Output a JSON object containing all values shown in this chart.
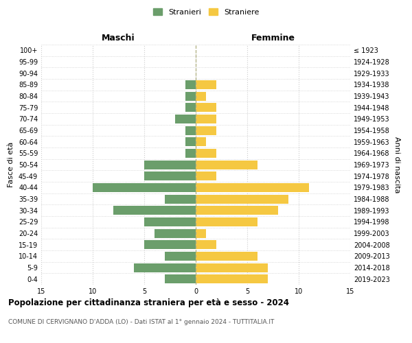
{
  "age_groups": [
    "0-4",
    "5-9",
    "10-14",
    "15-19",
    "20-24",
    "25-29",
    "30-34",
    "35-39",
    "40-44",
    "45-49",
    "50-54",
    "55-59",
    "60-64",
    "65-69",
    "70-74",
    "75-79",
    "80-84",
    "85-89",
    "90-94",
    "95-99",
    "100+"
  ],
  "birth_years": [
    "2019-2023",
    "2014-2018",
    "2009-2013",
    "2004-2008",
    "1999-2003",
    "1994-1998",
    "1989-1993",
    "1984-1988",
    "1979-1983",
    "1974-1978",
    "1969-1973",
    "1964-1968",
    "1959-1963",
    "1954-1958",
    "1949-1953",
    "1944-1948",
    "1939-1943",
    "1934-1938",
    "1929-1933",
    "1924-1928",
    "≤ 1923"
  ],
  "males": [
    3,
    6,
    3,
    5,
    4,
    5,
    8,
    3,
    10,
    5,
    5,
    1,
    1,
    1,
    2,
    1,
    1,
    1,
    0,
    0,
    0
  ],
  "females": [
    7,
    7,
    6,
    2,
    1,
    6,
    8,
    9,
    11,
    2,
    6,
    2,
    1,
    2,
    2,
    2,
    1,
    2,
    0,
    0,
    0
  ],
  "male_color": "#6b9e6b",
  "female_color": "#f5c842",
  "title": "Popolazione per cittadinanza straniera per età e sesso - 2024",
  "subtitle": "COMUNE DI CERVIGNANO D'ADDA (LO) - Dati ISTAT al 1° gennaio 2024 - TUTTITALIA.IT",
  "xlabel_left": "Maschi",
  "xlabel_right": "Femmine",
  "ylabel_left": "Fasce di età",
  "ylabel_right": "Anni di nascita",
  "legend_males": "Stranieri",
  "legend_females": "Straniere",
  "xlim": 15,
  "background_color": "#ffffff",
  "grid_color": "#cccccc"
}
